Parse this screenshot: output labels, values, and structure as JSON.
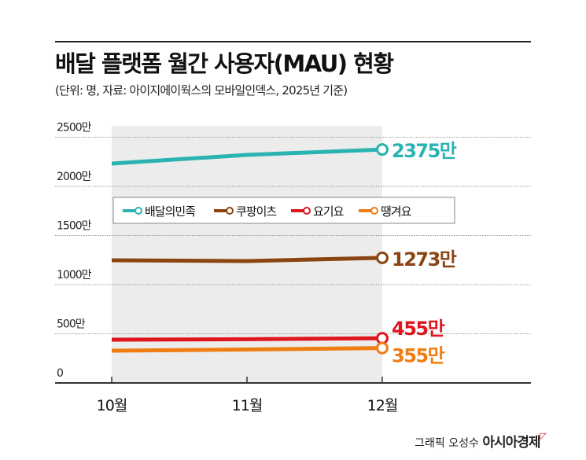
{
  "title": "배달 플랫폼 월간 사용자(MAU) 현황",
  "subtitle": "(단위: 명, 자료: 아이지에이웍스의 모바일인덱스, 2025년 기준)",
  "credit": {
    "graphic": "그래픽 오성수",
    "brand": "아시아경제"
  },
  "chart_data": {
    "type": "line",
    "title": "배달 플랫폼 월간 사용자(MAU) 현황",
    "categories": [
      "10월",
      "11월",
      "12월"
    ],
    "yticks": [
      {
        "v": 0,
        "label": "0"
      },
      {
        "v": 500,
        "label": "500만"
      },
      {
        "v": 1000,
        "label": "1000만"
      },
      {
        "v": 1500,
        "label": "1500만"
      },
      {
        "v": 2000,
        "label": "2000만"
      },
      {
        "v": 2500,
        "label": "2500만"
      }
    ],
    "ylim": [
      0,
      2500
    ],
    "grid": true,
    "legend": "top-center",
    "series": [
      {
        "name": "배달의민족",
        "color": "#2bb3b1",
        "values": [
          2232,
          2320,
          2375
        ],
        "end_label": "2375만"
      },
      {
        "name": "쿠팡이츠",
        "color": "#8b4513",
        "values": [
          1248,
          1240,
          1273
        ],
        "end_label": "1273만"
      },
      {
        "name": "요기요",
        "color": "#e0151f",
        "values": [
          440,
          445,
          455
        ],
        "end_label": "455만"
      },
      {
        "name": "땡겨요",
        "color": "#f07d12",
        "values": [
          328,
          340,
          355
        ],
        "end_label": "355만"
      }
    ]
  }
}
